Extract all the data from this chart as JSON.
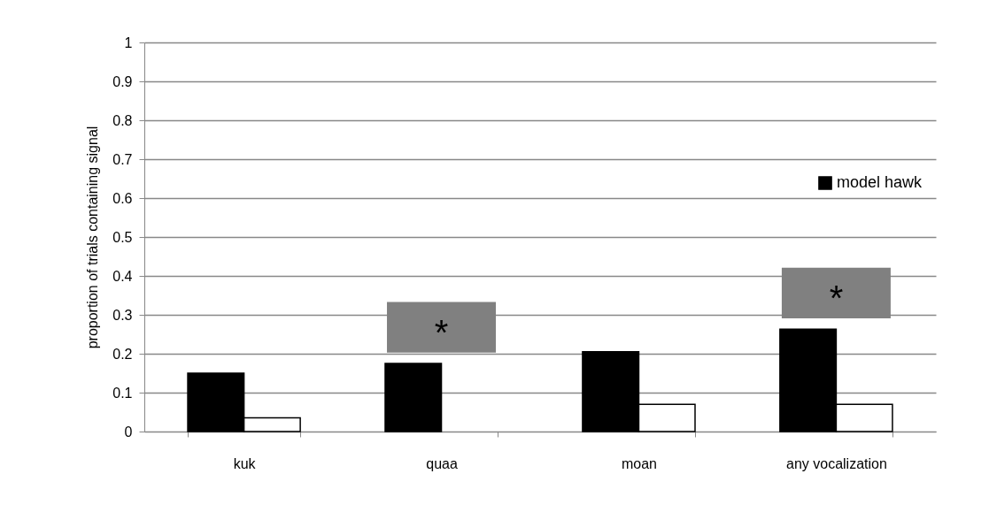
{
  "chart_data": {
    "type": "bar",
    "ylabel": "proportion of trials containing signal",
    "categories": [
      "kuk",
      "quaa",
      "moan",
      "any vocalization"
    ],
    "series": [
      {
        "name": "model hawk",
        "color": "#000000",
        "values": [
          0.15,
          0.175,
          0.205,
          0.263
        ]
      },
      {
        "color": "#ffffff",
        "values": [
          0.035,
          null,
          0.07,
          0.07
        ]
      }
    ],
    "ylim": [
      0,
      1
    ],
    "yticks": [
      0,
      0.1,
      0.2,
      0.3,
      0.4,
      0.5,
      0.6,
      0.7,
      0.8,
      0.9,
      1
    ],
    "grid": "y",
    "legend": "right",
    "annotations": [
      "*",
      "*"
    ]
  }
}
